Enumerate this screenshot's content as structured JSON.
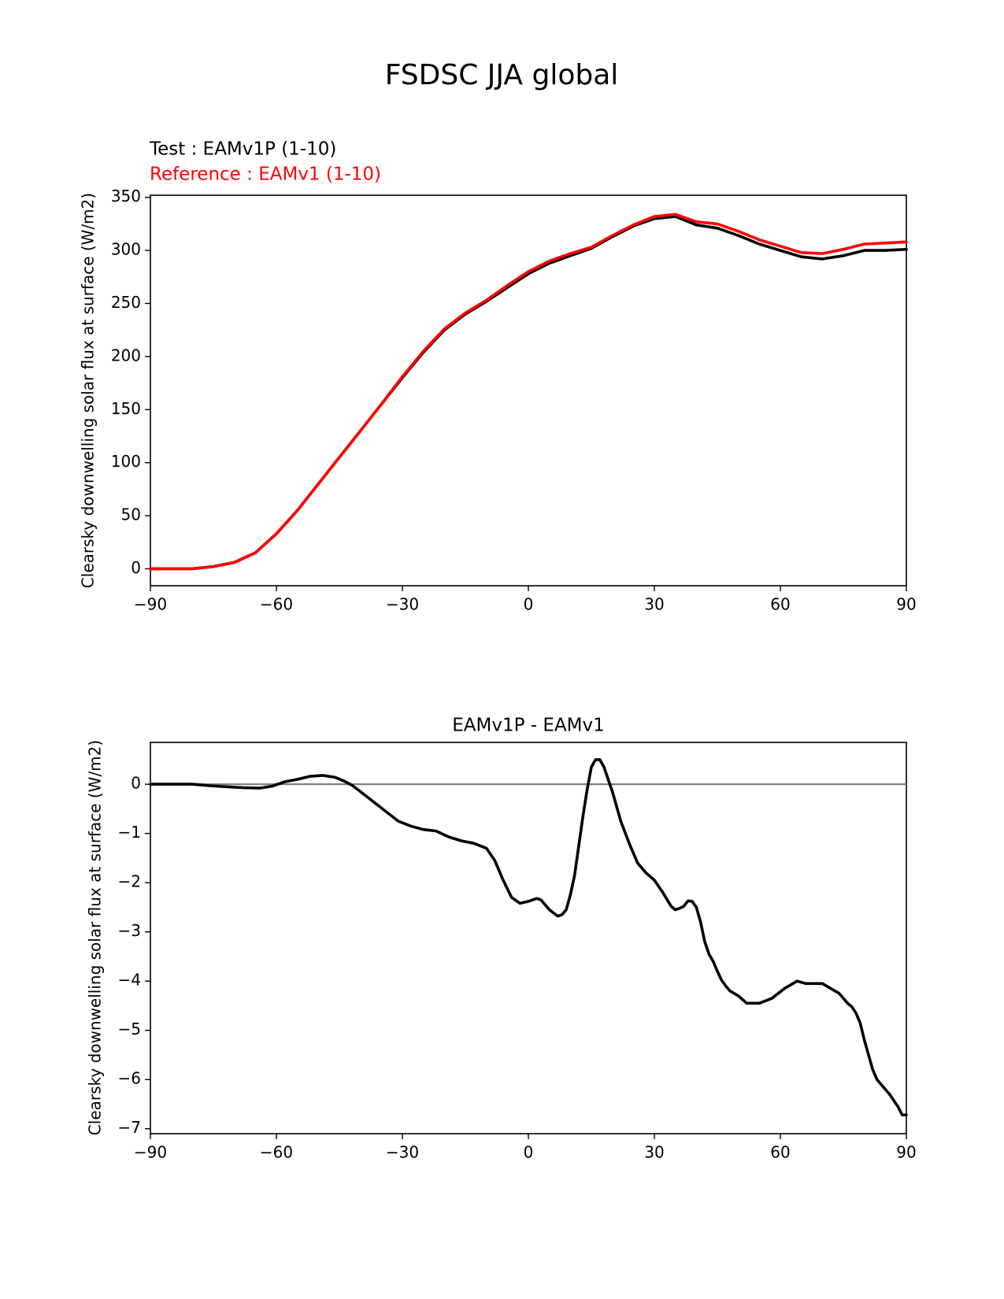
{
  "figure": {
    "title": "FSDSC JJA global"
  },
  "chart_data": [
    {
      "type": "line",
      "title": "",
      "legend": {
        "test": "Test : EAMv1P (1-10)",
        "reference": "Reference : EAMv1 (1-10)"
      },
      "xlabel": "",
      "ylabel": "Clearsky downwelling solar flux at surface (W/m2)",
      "xlim": [
        -90,
        90
      ],
      "ylim": [
        -16,
        352
      ],
      "xticks": [
        -90,
        -60,
        -30,
        0,
        30,
        60,
        90
      ],
      "xtick_labels": [
        "−90",
        "−60",
        "−30",
        "0",
        "30",
        "60",
        "90"
      ],
      "yticks": [
        0,
        50,
        100,
        150,
        200,
        250,
        300,
        350
      ],
      "ytick_labels": [
        "0",
        "50",
        "100",
        "150",
        "200",
        "250",
        "300",
        "350"
      ],
      "series": [
        {
          "name": "Test : EAMv1P (1-10)",
          "color": "#000000",
          "x": [
            -90,
            -85,
            -80,
            -75,
            -70,
            -65,
            -60,
            -55,
            -50,
            -45,
            -40,
            -35,
            -30,
            -25,
            -20,
            -15,
            -10,
            -5,
            0,
            5,
            10,
            15,
            20,
            25,
            30,
            35,
            40,
            45,
            50,
            55,
            60,
            65,
            70,
            75,
            80,
            85,
            90
          ],
          "y": [
            0,
            0,
            0,
            2,
            6,
            15,
            33,
            55,
            80,
            105,
            130,
            155,
            180,
            204,
            225,
            240,
            252,
            265,
            278,
            288,
            295,
            302,
            313,
            323,
            330,
            332,
            324,
            321,
            314,
            306,
            300,
            294,
            292,
            295,
            300,
            300,
            301
          ]
        },
        {
          "name": "Reference : EAMv1 (1-10)",
          "color": "#ff0000",
          "x": [
            -90,
            -85,
            -80,
            -75,
            -70,
            -65,
            -60,
            -55,
            -50,
            -45,
            -40,
            -35,
            -30,
            -25,
            -20,
            -15,
            -10,
            -5,
            0,
            5,
            10,
            15,
            20,
            25,
            30,
            35,
            40,
            45,
            50,
            55,
            60,
            65,
            70,
            75,
            80,
            85,
            90
          ],
          "y": [
            0,
            0,
            0,
            2,
            6,
            15,
            33,
            55,
            80,
            105,
            130,
            155,
            181,
            205,
            226,
            241,
            253,
            267,
            280,
            290,
            297,
            303,
            314,
            324,
            332,
            334,
            327,
            325,
            318,
            310,
            304,
            298,
            297,
            301,
            306,
            307,
            308
          ]
        }
      ]
    },
    {
      "type": "line",
      "title": "EAMv1P - EAMv1",
      "xlabel": "",
      "ylabel": "Clearsky downwelling solar flux at surface (W/m2)",
      "xlim": [
        -90,
        90
      ],
      "ylim": [
        -7.1,
        0.85
      ],
      "xticks": [
        -90,
        -60,
        -30,
        0,
        30,
        60,
        90
      ],
      "xtick_labels": [
        "−90",
        "−60",
        "−30",
        "0",
        "30",
        "60",
        "90"
      ],
      "yticks": [
        0,
        -1,
        -2,
        -3,
        -4,
        -5,
        -6,
        -7
      ],
      "ytick_labels": [
        "0",
        "−1",
        "−2",
        "−3",
        "−4",
        "−5",
        "−6",
        "−7"
      ],
      "zero_line": {
        "y": 0,
        "color": "#808080"
      },
      "series": [
        {
          "name": "",
          "color": "#000000",
          "x": [
            -90,
            -80,
            -76,
            -72,
            -68,
            -64,
            -61,
            -58,
            -55,
            -52,
            -49,
            -46,
            -44,
            -42,
            -40,
            -37,
            -34,
            -31,
            -28,
            -25,
            -22,
            -19,
            -16,
            -13,
            -10,
            -8,
            -6,
            -4,
            -2,
            0,
            2,
            3,
            5,
            7,
            8,
            9,
            10,
            11,
            12,
            13,
            14,
            15,
            16,
            17,
            18,
            19,
            20,
            21,
            22,
            24,
            26,
            28,
            30,
            32,
            34,
            35,
            36,
            37,
            38,
            39,
            40,
            41,
            42,
            43,
            44,
            45,
            46,
            47,
            48,
            50,
            52,
            55,
            58,
            61,
            64,
            66,
            68,
            70,
            72,
            74,
            76,
            77,
            78,
            79,
            80,
            81,
            82,
            83,
            84,
            86,
            88,
            89,
            90
          ],
          "y": [
            0,
            0,
            -0.03,
            -0.05,
            -0.07,
            -0.08,
            -0.04,
            0.05,
            0.1,
            0.16,
            0.18,
            0.14,
            0.07,
            -0.02,
            -0.15,
            -0.35,
            -0.55,
            -0.75,
            -0.85,
            -0.92,
            -0.95,
            -1.07,
            -1.15,
            -1.2,
            -1.3,
            -1.55,
            -1.95,
            -2.3,
            -2.42,
            -2.38,
            -2.32,
            -2.35,
            -2.55,
            -2.68,
            -2.65,
            -2.55,
            -2.25,
            -1.85,
            -1.25,
            -0.65,
            -0.1,
            0.35,
            0.5,
            0.5,
            0.35,
            0.1,
            -0.15,
            -0.45,
            -0.75,
            -1.2,
            -1.6,
            -1.8,
            -1.95,
            -2.2,
            -2.48,
            -2.55,
            -2.52,
            -2.48,
            -2.37,
            -2.38,
            -2.5,
            -2.8,
            -3.2,
            -3.45,
            -3.6,
            -3.8,
            -3.98,
            -4.1,
            -4.2,
            -4.3,
            -4.45,
            -4.45,
            -4.35,
            -4.15,
            -4.0,
            -4.05,
            -4.05,
            -4.05,
            -4.15,
            -4.25,
            -4.45,
            -4.52,
            -4.65,
            -4.85,
            -5.2,
            -5.5,
            -5.8,
            -6.0,
            -6.1,
            -6.3,
            -6.55,
            -6.72,
            -6.72
          ]
        }
      ]
    }
  ]
}
